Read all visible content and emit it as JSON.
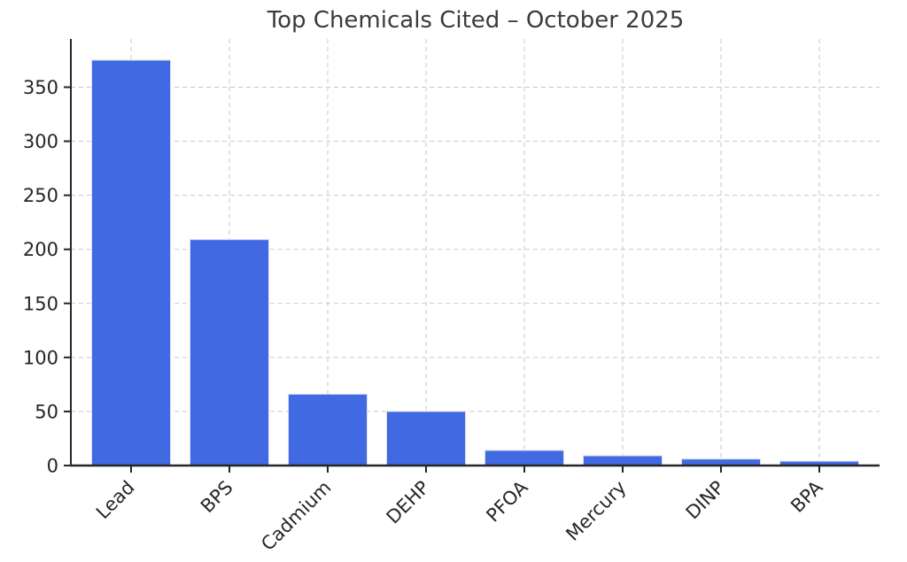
{
  "chart_data": {
    "type": "bar",
    "title": "Top Chemicals Cited – October 2025",
    "categories": [
      "Lead",
      "BPS",
      "Cadmium",
      "DEHP",
      "PFOA",
      "Mercury",
      "DINP",
      "BPA"
    ],
    "values": [
      375,
      209,
      66,
      50,
      14,
      9,
      6,
      4
    ],
    "xlabel": "",
    "ylabel": "",
    "ylim": [
      0,
      393.75
    ],
    "yticks": [
      0,
      50,
      100,
      150,
      200,
      250,
      300,
      350
    ],
    "x_tick_rotation": 45,
    "grid": "both-dashed",
    "legend_position": "none",
    "colors": {
      "bar_fill": "#4169E1",
      "bar_edge": "#d7def2",
      "grid_line": "#c9c9c9",
      "axis_line": "#262626",
      "title_text": "#3b3b3b",
      "tick_text": "#262626",
      "background": "#ffffff"
    }
  }
}
